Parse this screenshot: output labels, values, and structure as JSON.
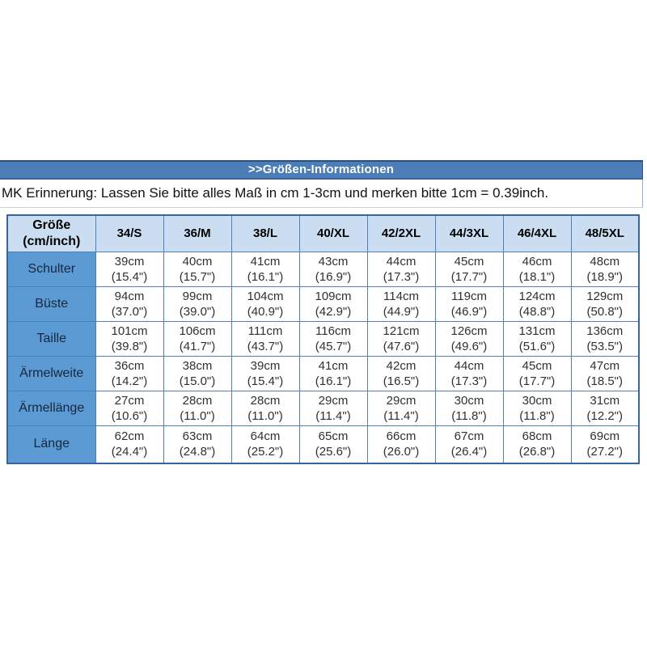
{
  "title_bar": {
    "label": ">>Größen-Informationen"
  },
  "reminder": {
    "text": "MK Erinnerung: Lassen Sie bitte alles Maß in cm 1-3cm und merken bitte 1cm = 0.39inch."
  },
  "colors": {
    "title_bar_bg": "#4D7DB7",
    "title_bar_border": "#2B4F7E",
    "title_text": "#FFFFFF",
    "table_border": "#4E81BB",
    "header_row_bg": "#CADDF1",
    "row_label_bg": "#5C9AD3",
    "cell_bg": "#FFFFFF",
    "cell_text": "#303030"
  },
  "table": {
    "corner_header": "Größe\n(cm/inch)",
    "columns": [
      "34/S",
      "36/M",
      "38/L",
      "40/XL",
      "42/2XL",
      "44/3XL",
      "46/4XL",
      "48/5XL"
    ],
    "rows": [
      {
        "label": "Schulter",
        "values": [
          [
            "39cm",
            "(15.4\")"
          ],
          [
            "40cm",
            "(15.7\")"
          ],
          [
            "41cm",
            "(16.1\")"
          ],
          [
            "43cm",
            "(16.9\")"
          ],
          [
            "44cm",
            "(17.3\")"
          ],
          [
            "45cm",
            "(17.7\")"
          ],
          [
            "46cm",
            "(18.1\")"
          ],
          [
            "48cm",
            "(18.9\")"
          ]
        ]
      },
      {
        "label": "Büste",
        "values": [
          [
            "94cm",
            "(37.0\")"
          ],
          [
            "99cm",
            "(39.0\")"
          ],
          [
            "104cm",
            "(40.9\")"
          ],
          [
            "109cm",
            "(42.9\")"
          ],
          [
            "114cm",
            "(44.9\")"
          ],
          [
            "119cm",
            "(46.9\")"
          ],
          [
            "124cm",
            "(48.8\")"
          ],
          [
            "129cm",
            "(50.8\")"
          ]
        ]
      },
      {
        "label": "Taille",
        "values": [
          [
            "101cm",
            "(39.8\")"
          ],
          [
            "106cm",
            "(41.7\")"
          ],
          [
            "111cm",
            "(43.7\")"
          ],
          [
            "116cm",
            "(45.7\")"
          ],
          [
            "121cm",
            "(47.6\")"
          ],
          [
            "126cm",
            "(49.6\")"
          ],
          [
            "131cm",
            "(51.6\")"
          ],
          [
            "136cm",
            "(53.5\")"
          ]
        ]
      },
      {
        "label": "Ärmelweite",
        "values": [
          [
            "36cm",
            "(14.2\")"
          ],
          [
            "38cm",
            "(15.0\")"
          ],
          [
            "39cm",
            "(15.4\")"
          ],
          [
            "41cm",
            "(16.1\")"
          ],
          [
            "42cm",
            "(16.5\")"
          ],
          [
            "44cm",
            "(17.3\")"
          ],
          [
            "45cm",
            "(17.7\")"
          ],
          [
            "47cm",
            "(18.5\")"
          ]
        ]
      },
      {
        "label": "Ärmellänge",
        "values": [
          [
            "27cm",
            "(10.6\")"
          ],
          [
            "28cm",
            "(11.0\")"
          ],
          [
            "28cm",
            "(11.0\")"
          ],
          [
            "29cm",
            "(11.4\")"
          ],
          [
            "29cm",
            "(11.4\")"
          ],
          [
            "30cm",
            "(11.8\")"
          ],
          [
            "30cm",
            "(11.8\")"
          ],
          [
            "31cm",
            "(12.2\")"
          ]
        ]
      },
      {
        "label": "Länge",
        "values": [
          [
            "62cm",
            "(24.4\")"
          ],
          [
            "63cm",
            "(24.8\")"
          ],
          [
            "64cm",
            "(25.2\")"
          ],
          [
            "65cm",
            "(25.6\")"
          ],
          [
            "66cm",
            "(26.0\")"
          ],
          [
            "67cm",
            "(26.4\")"
          ],
          [
            "68cm",
            "(26.8\")"
          ],
          [
            "69cm",
            "(27.2\")"
          ]
        ]
      }
    ]
  }
}
